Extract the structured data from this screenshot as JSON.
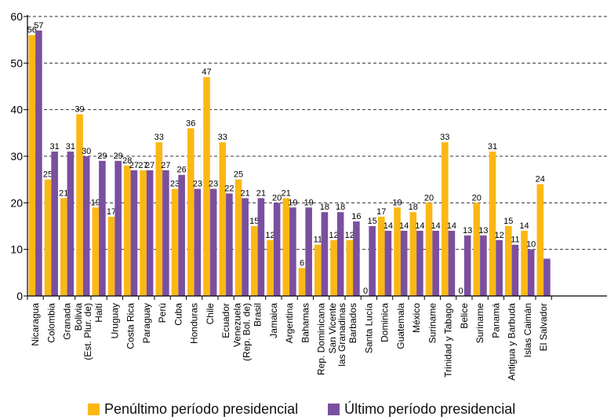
{
  "chart_data": {
    "type": "bar",
    "categories": [
      "Nicaragua",
      "Colombia",
      "Granada",
      "Bolivia\n(Est. Plur. de)",
      "Haití",
      "Uruguay",
      "Costa Rica",
      "Paraguay",
      "Perú",
      "Cuba",
      "Honduras",
      "Chile",
      "Ecuador",
      "Venezuela\n(Rep. Bol. de)",
      "Brasil",
      "Jamaica",
      "Argentina",
      "Bahamas",
      "Rep. Dominicana",
      "San Vicente\nlas Granadinas",
      "Barbados",
      "Santa Lucía",
      "Dominica",
      "Guatemala",
      "México",
      "Suriname",
      "Trinidad y Tabago",
      "Belice",
      "Suriname",
      "Panamá",
      "Antigua y Barbuda",
      "Islas Caimán",
      "El Salvador"
    ],
    "series": [
      {
        "name": "Penúltimo período presidencial",
        "color": "#fbb814",
        "values": [
          56,
          25,
          21,
          39,
          19,
          17,
          28,
          27,
          33,
          23,
          36,
          47,
          33,
          25,
          15,
          12,
          21,
          6,
          11,
          12,
          12,
          0,
          17,
          19,
          18,
          20,
          33,
          0,
          20,
          31,
          15,
          14,
          24
        ],
        "labels": [
          "56",
          "25",
          "21",
          "39",
          "19",
          "17",
          "28",
          "27",
          "33",
          "23",
          "36",
          "47",
          "33",
          "25",
          "15",
          "12",
          "21",
          "6",
          "11",
          "12",
          "12",
          "0",
          "17",
          "19",
          "18",
          "20",
          "33",
          "0",
          "20",
          "31",
          "15",
          "14",
          "24"
        ]
      },
      {
        "name": "Último período presidencial",
        "color": "#7b4fa0",
        "values": [
          57,
          31,
          31,
          30,
          29,
          29,
          27,
          27,
          27,
          26,
          23,
          23,
          22,
          21,
          21,
          20,
          19,
          19,
          18,
          18,
          16,
          15,
          14,
          14,
          14,
          14,
          14,
          13,
          13,
          12,
          11,
          10,
          8
        ],
        "labels": [
          "57",
          "31",
          "31",
          "30",
          "29",
          "29",
          "27",
          "27",
          "27",
          "26",
          "23",
          "23",
          "22",
          "21",
          "21",
          "20",
          "19",
          "19",
          "18",
          "18",
          "16",
          "15",
          "14",
          "14",
          "14",
          "14",
          "14",
          "13",
          "13",
          "12",
          "11",
          "10",
          ""
        ]
      }
    ],
    "title": "",
    "xlabel": "",
    "ylabel": "",
    "ylim": [
      0,
      60
    ],
    "yticks": [
      "0",
      "10",
      "20",
      "30",
      "40",
      "50",
      "60"
    ],
    "grid": "horizontal dashed",
    "legend_position": "bottom"
  }
}
